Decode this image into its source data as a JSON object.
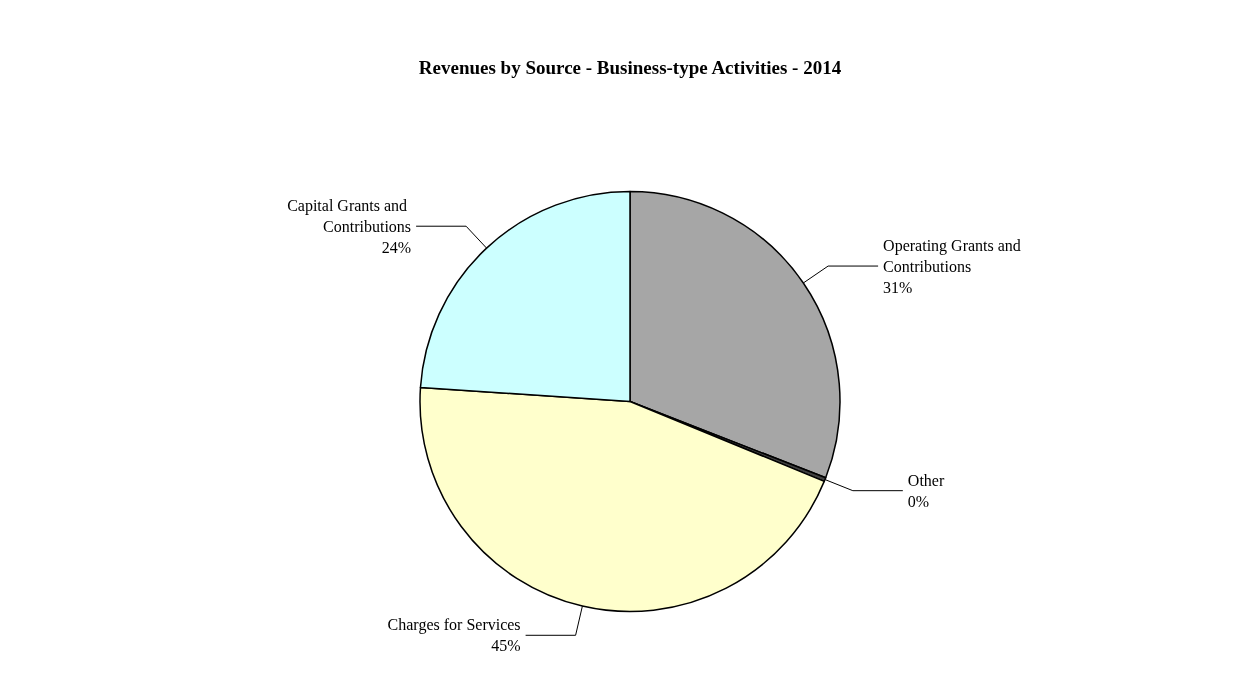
{
  "chart_data": {
    "type": "pie",
    "title": "Revenues by Source - Business-type Activities - 2014",
    "categories": [
      "Operating Grants and Contributions",
      "Other",
      "Charges for Services",
      "Capital Grants and Contributions"
    ],
    "values": [
      31,
      0.3,
      45,
      24
    ],
    "value_labels": [
      "31%",
      "0%",
      "45%",
      "24%"
    ],
    "colors": [
      "#a6a6a6",
      "#404040",
      "#ffffcc",
      "#ccffff"
    ]
  }
}
